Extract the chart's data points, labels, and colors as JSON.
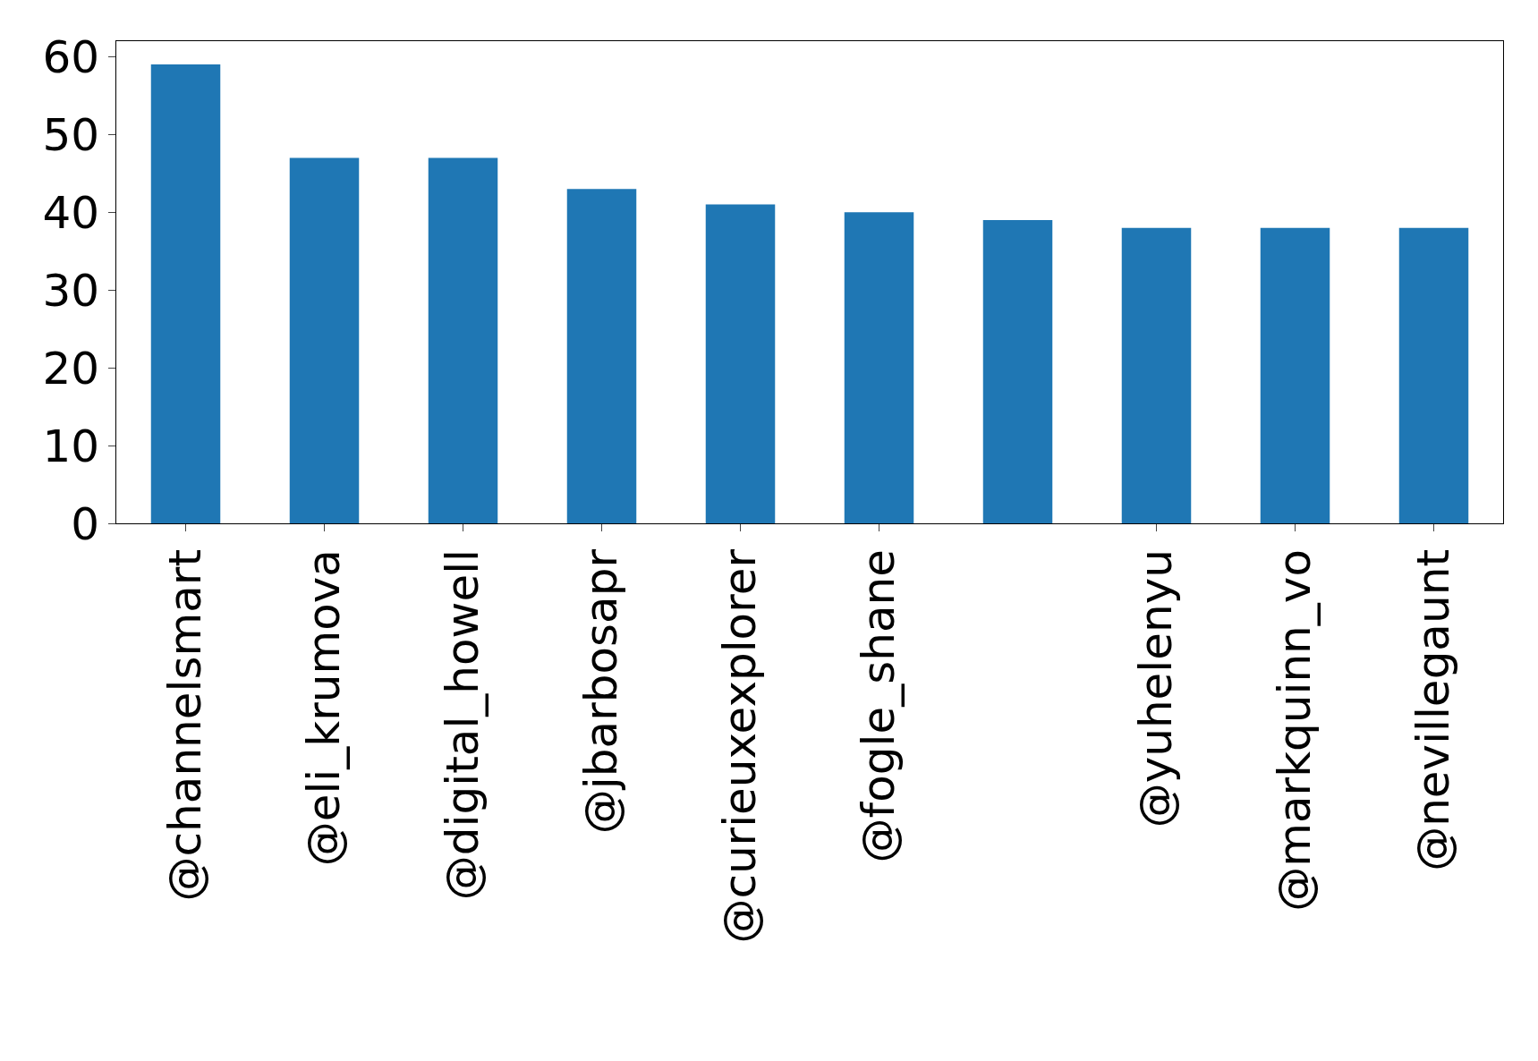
{
  "chart_data": {
    "type": "bar",
    "categories": [
      "@channelsmart",
      "@eli_krumova",
      "@digital_howell",
      "@jbarbosapr",
      "@curieuxexplorer",
      "@fogle_shane",
      null,
      "@yuhelenyu",
      "@markquinn_vo",
      "@nevillegaunt"
    ],
    "values": [
      59,
      47,
      47,
      43,
      41,
      40,
      39,
      38,
      38,
      38
    ],
    "color": "#1f77b4",
    "ylim": [
      0,
      62
    ],
    "yticks": [
      0,
      10,
      20,
      30,
      40,
      50,
      60
    ]
  }
}
